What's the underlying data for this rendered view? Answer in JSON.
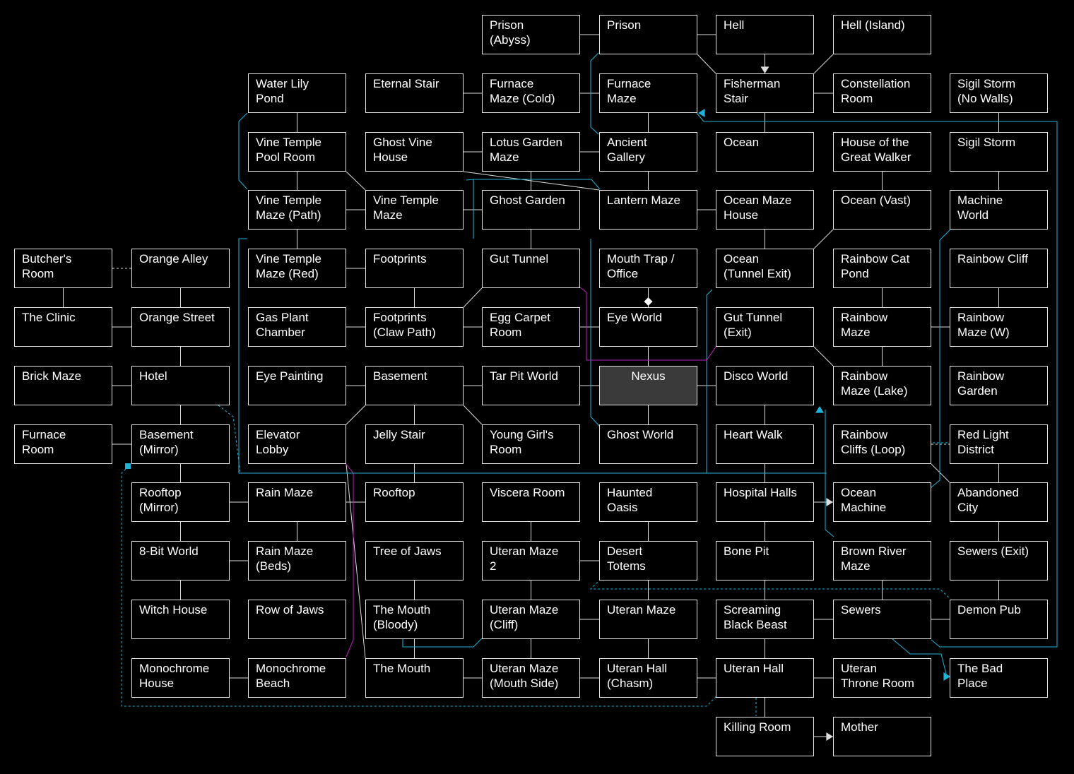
{
  "colors": {
    "background": "#000000",
    "box_border": "#e6e6e6",
    "box_text": "#ffffff",
    "connector": "#dddddd",
    "route_blue": "#1fb3d8",
    "route_pink": "#c020c0",
    "nexus_fill": "#3a3a3a"
  },
  "rooms": [
    {
      "id": "prison-abyss",
      "label": "Prison\n(Abyss)",
      "col": 4,
      "row": 0
    },
    {
      "id": "prison",
      "label": "Prison",
      "col": 5,
      "row": 0
    },
    {
      "id": "hell",
      "label": "Hell",
      "col": 6,
      "row": 0
    },
    {
      "id": "hell-island",
      "label": "Hell (Island)",
      "col": 7,
      "row": 0
    },
    {
      "id": "water-lily-pond",
      "label": "Water Lily\nPond",
      "col": 2,
      "row": 1
    },
    {
      "id": "eternal-stair",
      "label": "Eternal Stair",
      "col": 3,
      "row": 1
    },
    {
      "id": "furnace-maze-cold",
      "label": "Furnace\nMaze (Cold)",
      "col": 4,
      "row": 1
    },
    {
      "id": "furnace-maze",
      "label": "Furnace\nMaze",
      "col": 5,
      "row": 1
    },
    {
      "id": "fisherman-stair",
      "label": "Fisherman\nStair",
      "col": 6,
      "row": 1
    },
    {
      "id": "constellation-room",
      "label": "Constellation\nRoom",
      "col": 7,
      "row": 1
    },
    {
      "id": "sigil-storm-no-walls",
      "label": "Sigil Storm\n(No Walls)",
      "col": 8,
      "row": 1
    },
    {
      "id": "vine-temple-pool-room",
      "label": "Vine Temple\nPool Room",
      "col": 2,
      "row": 2
    },
    {
      "id": "ghost-vine-house",
      "label": "Ghost Vine\nHouse",
      "col": 3,
      "row": 2
    },
    {
      "id": "lotus-garden-maze",
      "label": "Lotus Garden\nMaze",
      "col": 4,
      "row": 2
    },
    {
      "id": "ancient-gallery",
      "label": "Ancient\nGallery",
      "col": 5,
      "row": 2
    },
    {
      "id": "ocean",
      "label": "Ocean",
      "col": 6,
      "row": 2
    },
    {
      "id": "house-great-walker",
      "label": "House of the\nGreat Walker",
      "col": 7,
      "row": 2
    },
    {
      "id": "sigil-storm",
      "label": "Sigil Storm",
      "col": 8,
      "row": 2
    },
    {
      "id": "vine-temple-maze-path",
      "label": "Vine Temple\nMaze (Path)",
      "col": 2,
      "row": 3
    },
    {
      "id": "vine-temple-maze",
      "label": "Vine Temple\nMaze",
      "col": 3,
      "row": 3
    },
    {
      "id": "ghost-garden",
      "label": "Ghost Garden",
      "col": 4,
      "row": 3
    },
    {
      "id": "lantern-maze",
      "label": "Lantern Maze",
      "col": 5,
      "row": 3
    },
    {
      "id": "ocean-maze-house",
      "label": "Ocean Maze\nHouse",
      "col": 6,
      "row": 3
    },
    {
      "id": "ocean-vast",
      "label": "Ocean (Vast)",
      "col": 7,
      "row": 3
    },
    {
      "id": "machine-world",
      "label": "Machine\nWorld",
      "col": 8,
      "row": 3
    },
    {
      "id": "butchers-room",
      "label": "Butcher's\nRoom",
      "col": 0,
      "row": 4
    },
    {
      "id": "orange-alley",
      "label": "Orange Alley",
      "col": 1,
      "row": 4
    },
    {
      "id": "vine-temple-maze-red",
      "label": "Vine Temple\nMaze (Red)",
      "col": 2,
      "row": 4
    },
    {
      "id": "footprints",
      "label": "Footprints",
      "col": 3,
      "row": 4
    },
    {
      "id": "gut-tunnel",
      "label": "Gut Tunnel",
      "col": 4,
      "row": 4
    },
    {
      "id": "mouth-trap-office",
      "label": "Mouth Trap /\nOffice",
      "col": 5,
      "row": 4
    },
    {
      "id": "ocean-tunnel-exit",
      "label": "Ocean\n(Tunnel Exit)",
      "col": 6,
      "row": 4
    },
    {
      "id": "rainbow-cat-pond",
      "label": "Rainbow Cat\nPond",
      "col": 7,
      "row": 4
    },
    {
      "id": "rainbow-cliff",
      "label": "Rainbow Cliff",
      "col": 8,
      "row": 4
    },
    {
      "id": "the-clinic",
      "label": "The Clinic",
      "col": 0,
      "row": 5
    },
    {
      "id": "orange-street",
      "label": "Orange Street",
      "col": 1,
      "row": 5
    },
    {
      "id": "gas-plant-chamber",
      "label": "Gas Plant\nChamber",
      "col": 2,
      "row": 5
    },
    {
      "id": "footprints-claw-path",
      "label": "Footprints\n(Claw Path)",
      "col": 3,
      "row": 5
    },
    {
      "id": "egg-carpet-room",
      "label": "Egg Carpet\nRoom",
      "col": 4,
      "row": 5
    },
    {
      "id": "eye-world",
      "label": "Eye World",
      "col": 5,
      "row": 5
    },
    {
      "id": "gut-tunnel-exit",
      "label": "Gut Tunnel\n(Exit)",
      "col": 6,
      "row": 5
    },
    {
      "id": "rainbow-maze",
      "label": "Rainbow\nMaze",
      "col": 7,
      "row": 5
    },
    {
      "id": "rainbow-maze-w",
      "label": "Rainbow\nMaze (W)",
      "col": 8,
      "row": 5
    },
    {
      "id": "brick-maze",
      "label": "Brick Maze",
      "col": 0,
      "row": 6
    },
    {
      "id": "hotel",
      "label": "Hotel",
      "col": 1,
      "row": 6
    },
    {
      "id": "eye-painting",
      "label": "Eye Painting",
      "col": 2,
      "row": 6
    },
    {
      "id": "basement",
      "label": "Basement",
      "col": 3,
      "row": 6
    },
    {
      "id": "tar-pit-world",
      "label": "Tar Pit World",
      "col": 4,
      "row": 6
    },
    {
      "id": "nexus",
      "label": "Nexus",
      "col": 5,
      "row": 6,
      "special": true
    },
    {
      "id": "disco-world",
      "label": "Disco World",
      "col": 6,
      "row": 6
    },
    {
      "id": "rainbow-maze-lake",
      "label": "Rainbow\nMaze (Lake)",
      "col": 7,
      "row": 6
    },
    {
      "id": "rainbow-garden",
      "label": "Rainbow\nGarden",
      "col": 8,
      "row": 6
    },
    {
      "id": "furnace-room",
      "label": "Furnace\nRoom",
      "col": 0,
      "row": 7
    },
    {
      "id": "basement-mirror",
      "label": "Basement\n(Mirror)",
      "col": 1,
      "row": 7
    },
    {
      "id": "elevator-lobby",
      "label": "Elevator\nLobby",
      "col": 2,
      "row": 7
    },
    {
      "id": "jelly-stair",
      "label": "Jelly Stair",
      "col": 3,
      "row": 7
    },
    {
      "id": "young-girls-room",
      "label": "Young Girl's\nRoom",
      "col": 4,
      "row": 7
    },
    {
      "id": "ghost-world",
      "label": "Ghost World",
      "col": 5,
      "row": 7
    },
    {
      "id": "heart-walk",
      "label": "Heart Walk",
      "col": 6,
      "row": 7
    },
    {
      "id": "rainbow-cliffs-loop",
      "label": "Rainbow\nCliffs (Loop)",
      "col": 7,
      "row": 7
    },
    {
      "id": "red-light-district",
      "label": "Red Light\nDistrict",
      "col": 8,
      "row": 7
    },
    {
      "id": "rooftop-mirror",
      "label": "Rooftop\n(Mirror)",
      "col": 1,
      "row": 8
    },
    {
      "id": "rain-maze",
      "label": "Rain Maze",
      "col": 2,
      "row": 8
    },
    {
      "id": "rooftop",
      "label": "Rooftop",
      "col": 3,
      "row": 8
    },
    {
      "id": "viscera-room",
      "label": "Viscera Room",
      "col": 4,
      "row": 8
    },
    {
      "id": "haunted-oasis",
      "label": "Haunted\nOasis",
      "col": 5,
      "row": 8
    },
    {
      "id": "hospital-halls",
      "label": "Hospital Halls",
      "col": 6,
      "row": 8
    },
    {
      "id": "ocean-machine",
      "label": "Ocean\nMachine",
      "col": 7,
      "row": 8
    },
    {
      "id": "abandoned-city",
      "label": "Abandoned\nCity",
      "col": 8,
      "row": 8
    },
    {
      "id": "8-bit-world",
      "label": "8-Bit World",
      "col": 1,
      "row": 9
    },
    {
      "id": "rain-maze-beds",
      "label": "Rain Maze\n(Beds)",
      "col": 2,
      "row": 9
    },
    {
      "id": "tree-of-jaws",
      "label": "Tree of Jaws",
      "col": 3,
      "row": 9
    },
    {
      "id": "uteran-maze-2",
      "label": "Uteran Maze\n2",
      "col": 4,
      "row": 9
    },
    {
      "id": "desert-totems",
      "label": "Desert\nTotems",
      "col": 5,
      "row": 9
    },
    {
      "id": "bone-pit",
      "label": "Bone Pit",
      "col": 6,
      "row": 9
    },
    {
      "id": "brown-river-maze",
      "label": "Brown River\nMaze",
      "col": 7,
      "row": 9
    },
    {
      "id": "sewers-exit",
      "label": "Sewers (Exit)",
      "col": 8,
      "row": 9
    },
    {
      "id": "witch-house",
      "label": "Witch House",
      "col": 1,
      "row": 10
    },
    {
      "id": "row-of-jaws",
      "label": "Row of Jaws",
      "col": 2,
      "row": 10
    },
    {
      "id": "the-mouth-bloody",
      "label": "The Mouth\n(Bloody)",
      "col": 3,
      "row": 10
    },
    {
      "id": "uteran-maze-cliff",
      "label": "Uteran Maze\n(Cliff)",
      "col": 4,
      "row": 10
    },
    {
      "id": "uteran-maze",
      "label": "Uteran Maze",
      "col": 5,
      "row": 10
    },
    {
      "id": "screaming-black-beast",
      "label": "Screaming\nBlack Beast",
      "col": 6,
      "row": 10
    },
    {
      "id": "sewers",
      "label": "Sewers",
      "col": 7,
      "row": 10
    },
    {
      "id": "demon-pub",
      "label": "Demon Pub",
      "col": 8,
      "row": 10
    },
    {
      "id": "monochrome-house",
      "label": "Monochrome\nHouse",
      "col": 1,
      "row": 11
    },
    {
      "id": "monochrome-beach",
      "label": "Monochrome\nBeach",
      "col": 2,
      "row": 11
    },
    {
      "id": "the-mouth",
      "label": "The Mouth",
      "col": 3,
      "row": 11
    },
    {
      "id": "uteran-maze-mouth-side",
      "label": "Uteran Maze\n(Mouth Side)",
      "col": 4,
      "row": 11
    },
    {
      "id": "uteran-hall-chasm",
      "label": "Uteran Hall\n(Chasm)",
      "col": 5,
      "row": 11
    },
    {
      "id": "uteran-hall",
      "label": "Uteran Hall",
      "col": 6,
      "row": 11
    },
    {
      "id": "uteran-throne-room",
      "label": "Uteran\nThrone Room",
      "col": 7,
      "row": 11
    },
    {
      "id": "the-bad-place",
      "label": "The Bad\nPlace",
      "col": 8,
      "row": 11
    },
    {
      "id": "killing-room",
      "label": "Killing Room",
      "col": 6,
      "row": 12
    },
    {
      "id": "mother",
      "label": "Mother",
      "col": 7,
      "row": 12
    }
  ],
  "links": [
    [
      "prison-abyss",
      "prison"
    ],
    [
      "prison",
      "hell"
    ],
    [
      "eternal-stair",
      "furnace-maze-cold"
    ],
    [
      "furnace-maze-cold",
      "furnace-maze"
    ],
    [
      "fisherman-stair",
      "constellation-room"
    ],
    [
      "ghost-vine-house",
      "lotus-garden-maze"
    ],
    [
      "vine-temple-maze-path",
      "vine-temple-maze"
    ],
    [
      "vine-temple-maze",
      "ghost-garden"
    ],
    [
      "lantern-maze",
      "ocean-maze-house"
    ],
    [
      "vine-temple-maze-red",
      "footprints"
    ],
    [
      "the-clinic",
      "orange-street"
    ],
    [
      "gas-plant-chamber",
      "footprints-claw-path"
    ],
    [
      "footprints-claw-path",
      "egg-carpet-room"
    ],
    [
      "egg-carpet-room",
      "eye-world"
    ],
    [
      "rainbow-maze",
      "rainbow-maze-w"
    ],
    [
      "brick-maze",
      "hotel"
    ],
    [
      "eye-painting",
      "basement"
    ],
    [
      "basement",
      "tar-pit-world"
    ],
    [
      "tar-pit-world",
      "nexus"
    ],
    [
      "nexus",
      "disco-world"
    ],
    [
      "furnace-room",
      "basement-mirror"
    ],
    [
      "rooftop-mirror",
      "rain-maze"
    ],
    [
      "rain-maze",
      "rooftop"
    ],
    [
      "8-bit-world",
      "rain-maze-beds"
    ],
    [
      "uteran-maze-2",
      "desert-totems"
    ],
    [
      "uteran-maze-cliff",
      "uteran-maze"
    ],
    [
      "screaming-black-beast",
      "sewers"
    ],
    [
      "sewers",
      "demon-pub"
    ],
    [
      "monochrome-house",
      "monochrome-beach"
    ],
    [
      "the-mouth",
      "uteran-maze-mouth-side"
    ],
    [
      "uteran-maze-mouth-side",
      "uteran-hall-chasm"
    ],
    [
      "uteran-hall-chasm",
      "uteran-hall"
    ],
    [
      "uteran-hall",
      "uteran-throne-room"
    ],
    [
      "hell",
      "fisherman-stair"
    ],
    [
      "furnace-maze",
      "ancient-gallery"
    ],
    [
      "fisherman-stair",
      "ocean"
    ],
    [
      "sigil-storm-no-walls",
      "sigil-storm"
    ],
    [
      "lotus-garden-maze",
      "ghost-garden"
    ],
    [
      "ancient-gallery",
      "lantern-maze"
    ],
    [
      "sigil-storm",
      "machine-world"
    ],
    [
      "ocean-maze-house",
      "ocean-tunnel-exit"
    ],
    [
      "vine-temple-maze-path",
      "vine-temple-maze-red"
    ],
    [
      "butchers-room",
      "the-clinic"
    ],
    [
      "orange-alley",
      "orange-street"
    ],
    [
      "footprints",
      "footprints-claw-path"
    ],
    [
      "mouth-trap-office",
      "eye-world"
    ],
    [
      "rainbow-cat-pond",
      "rainbow-maze"
    ],
    [
      "rainbow-cliff",
      "rainbow-maze-w"
    ],
    [
      "orange-street",
      "hotel"
    ],
    [
      "eye-world",
      "nexus"
    ],
    [
      "rainbow-maze",
      "rainbow-maze-lake"
    ],
    [
      "hotel",
      "basement-mirror"
    ],
    [
      "basement",
      "jelly-stair"
    ],
    [
      "nexus",
      "ghost-world"
    ],
    [
      "disco-world",
      "heart-walk"
    ],
    [
      "basement-mirror",
      "rooftop-mirror"
    ],
    [
      "jelly-stair",
      "rooftop"
    ],
    [
      "heart-walk",
      "hospital-halls"
    ],
    [
      "red-light-district",
      "abandoned-city"
    ],
    [
      "rooftop-mirror",
      "8-bit-world"
    ],
    [
      "rain-maze",
      "rain-maze-beds"
    ],
    [
      "viscera-room",
      "uteran-maze-2"
    ],
    [
      "haunted-oasis",
      "desert-totems"
    ],
    [
      "hospital-halls",
      "bone-pit"
    ],
    [
      "abandoned-city",
      "sewers-exit"
    ],
    [
      "8-bit-world",
      "witch-house"
    ],
    [
      "tree-of-jaws",
      "the-mouth-bloody"
    ],
    [
      "uteran-maze-2",
      "uteran-maze-cliff"
    ],
    [
      "desert-totems",
      "uteran-maze"
    ],
    [
      "bone-pit",
      "screaming-black-beast"
    ],
    [
      "brown-river-maze",
      "sewers"
    ],
    [
      "sewers-exit",
      "demon-pub"
    ],
    [
      "uteran-maze",
      "uteran-hall-chasm"
    ],
    [
      "screaming-black-beast",
      "uteran-hall"
    ],
    [
      "uteran-hall",
      "killing-room"
    ]
  ],
  "diagonals": [
    [
      "prison",
      "fisherman-stair"
    ],
    [
      "hell-island",
      "fisherman-stair"
    ],
    [
      "ancient-gallery",
      "lotus-garden-maze"
    ],
    [
      "water-lily-pond",
      "vine-temple-maze-path"
    ],
    [
      "vine-temple-pool-room",
      "vine-temple-maze"
    ],
    [
      "ghost-vine-house",
      "lantern-maze"
    ],
    [
      "house-great-walker",
      "ocean-vast"
    ],
    [
      "ocean-vast",
      "ocean-tunnel-exit"
    ],
    [
      "ghost-garden",
      "gut-tunnel"
    ],
    [
      "gut-tunnel",
      "footprints-claw-path"
    ],
    [
      "gut-tunnel-exit",
      "rainbow-maze-lake"
    ],
    [
      "basement",
      "elevator-lobby"
    ],
    [
      "basement",
      "young-girls-room"
    ],
    [
      "basement",
      "eye-painting"
    ],
    [
      "the-mouth-bloody",
      "the-mouth"
    ],
    [
      "uteran-maze-cliff",
      "uteran-maze-mouth-side"
    ],
    [
      "rainbow-cliffs-loop",
      "abandoned-city"
    ],
    [
      "elevator-lobby",
      "the-mouth"
    ]
  ],
  "dotted_links": [
    [
      "butchers-room",
      "orange-alley"
    ],
    [
      "rainbow-cliffs-loop",
      "red-light-district"
    ]
  ]
}
